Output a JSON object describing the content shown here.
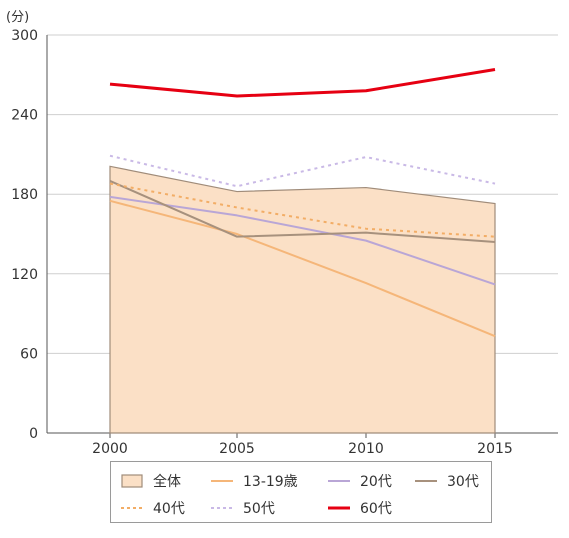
{
  "unit_label": "(分)",
  "chart_data": {
    "type": "line",
    "x": [
      "2000",
      "2005",
      "2010",
      "2015"
    ],
    "y_ticks": [
      "0",
      "60",
      "120",
      "180",
      "240",
      "300"
    ],
    "ylim": [
      0,
      300
    ],
    "grid": true,
    "legend_position": "bottom",
    "series": [
      {
        "name": "全体",
        "values": [
          201,
          182,
          185,
          173
        ],
        "style": "area",
        "color": "#fbe0c6",
        "stroke": "#a08c7a"
      },
      {
        "name": "13-19歳",
        "values": [
          175,
          150,
          113,
          73
        ],
        "style": "solid",
        "color": "#f5b679"
      },
      {
        "name": "20代",
        "values": [
          178,
          164,
          145,
          112
        ],
        "style": "solid",
        "color": "#b9a6d6"
      },
      {
        "name": "30代",
        "values": [
          190,
          148,
          151,
          144
        ],
        "style": "solid",
        "color": "#a7917d"
      },
      {
        "name": "40代",
        "values": [
          188,
          170,
          154,
          148
        ],
        "style": "dotted",
        "color": "#f2ad66"
      },
      {
        "name": "50代",
        "values": [
          209,
          186,
          208,
          188
        ],
        "style": "dotted",
        "color": "#c9b9e6"
      },
      {
        "name": "60代",
        "values": [
          263,
          254,
          258,
          274
        ],
        "style": "solid-bold",
        "color": "#e60012"
      }
    ]
  }
}
